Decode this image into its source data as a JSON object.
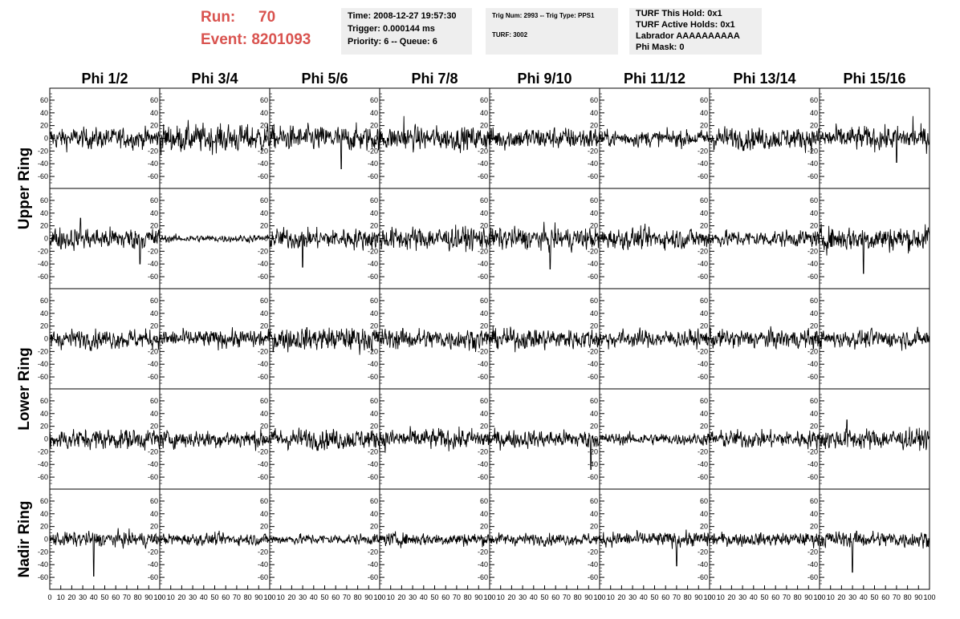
{
  "header": {
    "run_label": "Run:",
    "run_value": "70",
    "event_label": "Event:",
    "event_value": "8201093",
    "time_line": "Time: 2008-12-27 19:57:30",
    "trigger_line": "Trigger: 0.000144 ms",
    "priority_line": "Priority: 6 -- Queue: 6",
    "trig_line": "Trig Num: 2993 -- Trig Type: PPS1",
    "turf_line": "TURF: 3002",
    "hold_line": "TURF This Hold: 0x1",
    "active_holds_line": "TURF Active Holds: 0x1",
    "labrador_line": "Labrador AAAAAAAAAA",
    "phi_mask_line": "Phi Mask: 0"
  },
  "colors": {
    "run_text": "#d9534f",
    "info_bg": "#eeeeee",
    "trace": "#000000"
  },
  "chart_data": {
    "type": "line",
    "columns": [
      "Phi 1/2",
      "Phi 3/4",
      "Phi 5/6",
      "Phi 7/8",
      "Phi 9/10",
      "Phi 11/12",
      "Phi 13/14",
      "Phi 15/16"
    ],
    "rows": [
      "Upper Ring",
      "Lower Ring",
      "Nadir Ring"
    ],
    "panel_rows": 5,
    "ylim": [
      -70,
      70
    ],
    "yticks": [
      -60,
      -40,
      -20,
      0,
      20,
      40,
      60
    ],
    "xlim": [
      0,
      100
    ],
    "xticks": [
      0,
      10,
      20,
      30,
      40,
      50,
      60,
      70,
      80,
      90,
      100
    ],
    "samples_per_trace": 260,
    "panel_amplitudes": [
      [
        14,
        19,
        17,
        16,
        15,
        11,
        15,
        16
      ],
      [
        15,
        5,
        14,
        16,
        15,
        14,
        11,
        17
      ],
      [
        13,
        12,
        16,
        14,
        14,
        12,
        13,
        12
      ],
      [
        14,
        12,
        14,
        14,
        12,
        8,
        12,
        14
      ],
      [
        10,
        8,
        7,
        9,
        8,
        10,
        9,
        11
      ]
    ],
    "panel_spikes": [
      [
        [],
        [],
        [
          [
            65,
            -48
          ]
        ],
        [
          [
            22,
            35
          ]
        ],
        [],
        [],
        [],
        [
          [
            85,
            35
          ],
          [
            70,
            -38
          ]
        ]
      ],
      [
        [
          [
            28,
            32
          ],
          [
            82,
            -40
          ]
        ],
        [],
        [
          [
            30,
            -45
          ]
        ],
        [],
        [
          [
            55,
            -48
          ]
        ],
        [],
        [],
        [
          [
            40,
            -55
          ]
        ]
      ],
      [
        [],
        [],
        [],
        [],
        [],
        [],
        [],
        []
      ],
      [
        [],
        [],
        [],
        [],
        [
          [
            92,
            -48
          ]
        ],
        [],
        [],
        [
          [
            25,
            30
          ]
        ]
      ],
      [
        [
          [
            40,
            -58
          ]
        ],
        [],
        [],
        [],
        [],
        [
          [
            70,
            -42
          ]
        ],
        [],
        [
          [
            30,
            -52
          ]
        ]
      ]
    ]
  }
}
